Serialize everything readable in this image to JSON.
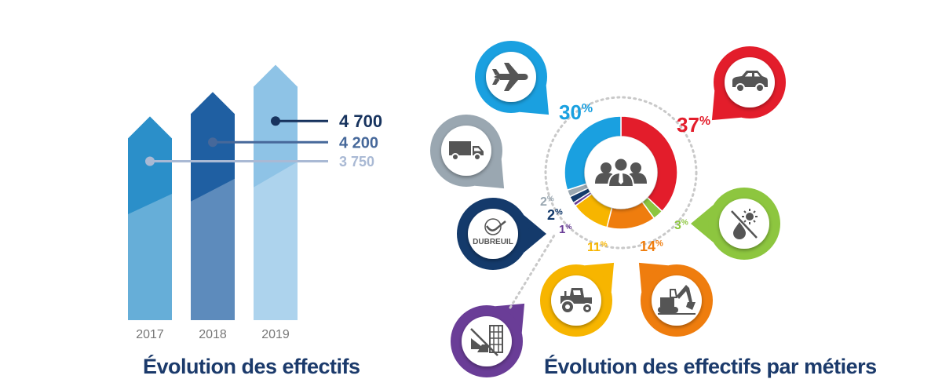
{
  "chart_data": [
    {
      "type": "bar",
      "title": "Évolution des effectifs",
      "categories": [
        "2017",
        "2018",
        "2019"
      ],
      "values": [
        3750,
        4200,
        4700
      ],
      "value_labels": [
        "3 750",
        "4 200",
        "4 700"
      ],
      "ylim": [
        0,
        5200
      ],
      "colors": [
        "#2b8fc9",
        "#1f5fa2",
        "#8ec3e6"
      ],
      "label_colors": [
        "#a9b9d4",
        "#46689a",
        "#17335e"
      ],
      "grid": false,
      "legend": "none"
    },
    {
      "type": "pie",
      "title": "Évolution des effectifs par métiers",
      "slices": [
        {
          "icon": "car-icon",
          "value": 37,
          "label": "37",
          "color": "#e31d2b"
        },
        {
          "icon": "sun-drop-icon",
          "value": 3,
          "label": "3",
          "color": "#8dc63f"
        },
        {
          "icon": "excavator-icon",
          "value": 14,
          "label": "14",
          "color": "#ef7d0e"
        },
        {
          "icon": "tractor-icon",
          "value": 11,
          "label": "11",
          "color": "#f7b500"
        },
        {
          "icon": "building-icon",
          "value": 1,
          "label": "1",
          "color": "#6a3d97"
        },
        {
          "icon": "dubreuil-logo",
          "value": 2,
          "label": "2",
          "color": "#143a6b"
        },
        {
          "icon": "truck-icon",
          "value": 2,
          "label": "2",
          "color": "#9aa7b1"
        },
        {
          "icon": "airplane-icon",
          "value": 30,
          "label": "30",
          "color": "#1aa0e0"
        }
      ],
      "percent_sign": "%",
      "center_icon": "people-icon",
      "logo_text": "DUBREUIL",
      "grid": false,
      "legend": "none"
    }
  ]
}
